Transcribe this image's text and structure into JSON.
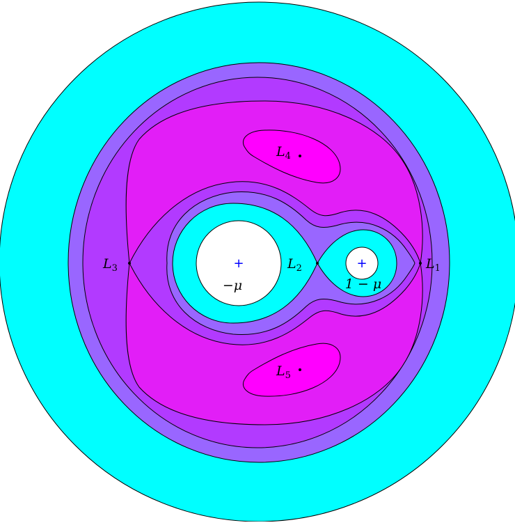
{
  "colors": {
    "outer": "#00ffff",
    "level1": "#9966ff",
    "level2": "#b23aff",
    "level3": "#e21ef7",
    "peak": "#ff00ff",
    "hole": "#ffffff",
    "primary_marker": "#0000ff"
  },
  "points": {
    "L1": {
      "base": "L",
      "sub": "1"
    },
    "L2": {
      "base": "L",
      "sub": "2"
    },
    "L3": {
      "base": "L",
      "sub": "3"
    },
    "L4": {
      "base": "L",
      "sub": "4"
    },
    "L5": {
      "base": "L",
      "sub": "5"
    }
  },
  "bodies": {
    "large": {
      "marker": "+",
      "label": "−μ"
    },
    "small": {
      "marker": "+",
      "label": "1 − μ"
    }
  }
}
